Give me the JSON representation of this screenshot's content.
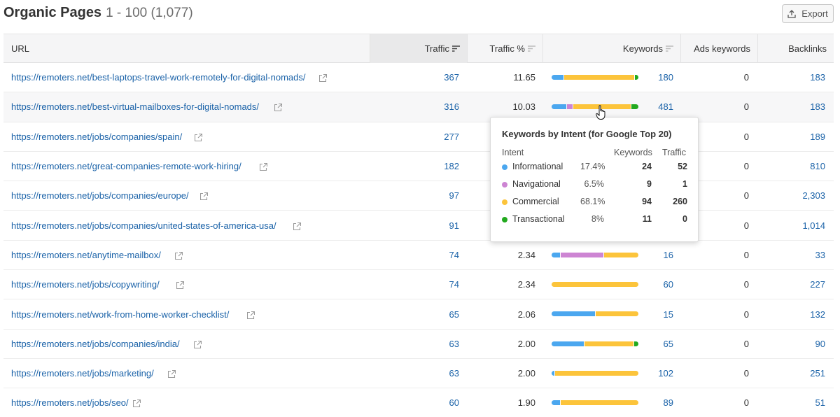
{
  "header": {
    "title": "Organic Pages",
    "range": "1 - 100 (1,077)",
    "export_label": "Export"
  },
  "columns": {
    "url": "URL",
    "traffic": "Traffic",
    "traffic_pct": "Traffic %",
    "keywords": "Keywords",
    "ads_keywords": "Ads keywords",
    "backlinks": "Backlinks"
  },
  "colors": {
    "informational": "#4ba7ef",
    "navigational": "#cd85d3",
    "commercial": "#fcc43b",
    "transactional": "#22a91e",
    "link": "#1a62a8"
  },
  "rows": [
    {
      "url": "https://remoters.net/best-laptops-travel-work-remotely-for-digital-nomads/",
      "traffic": "367",
      "traffic_pct": "11.65",
      "keywords": "180",
      "ads": "0",
      "backlinks": "183",
      "intent": {
        "informational": 14,
        "navigational": 0,
        "commercial": 82,
        "transactional": 4
      }
    },
    {
      "url": "https://remoters.net/best-virtual-mailboxes-for-digital-nomads/",
      "traffic": "316",
      "traffic_pct": "10.03",
      "keywords": "481",
      "ads": "0",
      "backlinks": "183",
      "intent": {
        "informational": 17.4,
        "navigational": 6.5,
        "commercial": 68.1,
        "transactional": 8
      }
    },
    {
      "url": "https://remoters.net/jobs/companies/spain/",
      "traffic": "277",
      "traffic_pct": "",
      "keywords": "",
      "ads": "0",
      "backlinks": "189",
      "intent": null
    },
    {
      "url": "https://remoters.net/great-companies-remote-work-hiring/",
      "traffic": "182",
      "traffic_pct": "",
      "keywords": "",
      "ads": "0",
      "backlinks": "810",
      "intent": null
    },
    {
      "url": "https://remoters.net/jobs/companies/europe/",
      "traffic": "97",
      "traffic_pct": "",
      "keywords": "",
      "ads": "0",
      "backlinks": "2,303",
      "intent": null
    },
    {
      "url": "https://remoters.net/jobs/companies/united-states-of-america-usa/",
      "traffic": "91",
      "traffic_pct": "",
      "keywords": "",
      "ads": "0",
      "backlinks": "1,014",
      "intent": null
    },
    {
      "url": "https://remoters.net/anytime-mailbox/",
      "traffic": "74",
      "traffic_pct": "2.34",
      "keywords": "16",
      "ads": "0",
      "backlinks": "33",
      "intent": {
        "informational": 10,
        "navigational": 50,
        "commercial": 40,
        "transactional": 0
      }
    },
    {
      "url": "https://remoters.net/jobs/copywriting/",
      "traffic": "74",
      "traffic_pct": "2.34",
      "keywords": "60",
      "ads": "0",
      "backlinks": "227",
      "intent": {
        "informational": 0,
        "navigational": 0,
        "commercial": 100,
        "transactional": 0
      }
    },
    {
      "url": "https://remoters.net/work-from-home-worker-checklist/",
      "traffic": "65",
      "traffic_pct": "2.06",
      "keywords": "15",
      "ads": "0",
      "backlinks": "132",
      "intent": {
        "informational": 50,
        "navigational": 0,
        "commercial": 50,
        "transactional": 0
      }
    },
    {
      "url": "https://remoters.net/jobs/companies/india/",
      "traffic": "63",
      "traffic_pct": "2.00",
      "keywords": "65",
      "ads": "0",
      "backlinks": "90",
      "intent": {
        "informational": 38,
        "navigational": 0,
        "commercial": 57,
        "transactional": 5
      }
    },
    {
      "url": "https://remoters.net/jobs/marketing/",
      "traffic": "63",
      "traffic_pct": "2.00",
      "keywords": "102",
      "ads": "0",
      "backlinks": "251",
      "intent": {
        "informational": 3,
        "navigational": 0,
        "commercial": 97,
        "transactional": 0
      }
    },
    {
      "url": "https://remoters.net/jobs/seo/",
      "traffic": "60",
      "traffic_pct": "1.90",
      "keywords": "89",
      "ads": "0",
      "backlinks": "51",
      "intent": {
        "informational": 10,
        "navigational": 0,
        "commercial": 90,
        "transactional": 0
      }
    }
  ],
  "tooltip": {
    "title": "Keywords by Intent (for Google Top 20)",
    "head_intent": "Intent",
    "head_keywords": "Keywords",
    "head_traffic": "Traffic",
    "items": [
      {
        "name": "Informational",
        "pct": "17.4%",
        "keywords": "24",
        "traffic": "52",
        "color": "#4ba7ef"
      },
      {
        "name": "Navigational",
        "pct": "6.5%",
        "keywords": "9",
        "traffic": "1",
        "color": "#cd85d3"
      },
      {
        "name": "Commercial",
        "pct": "68.1%",
        "keywords": "94",
        "traffic": "260",
        "color": "#fcc43b"
      },
      {
        "name": "Transactional",
        "pct": "8%",
        "keywords": "11",
        "traffic": "0",
        "color": "#22a91e"
      }
    ]
  }
}
